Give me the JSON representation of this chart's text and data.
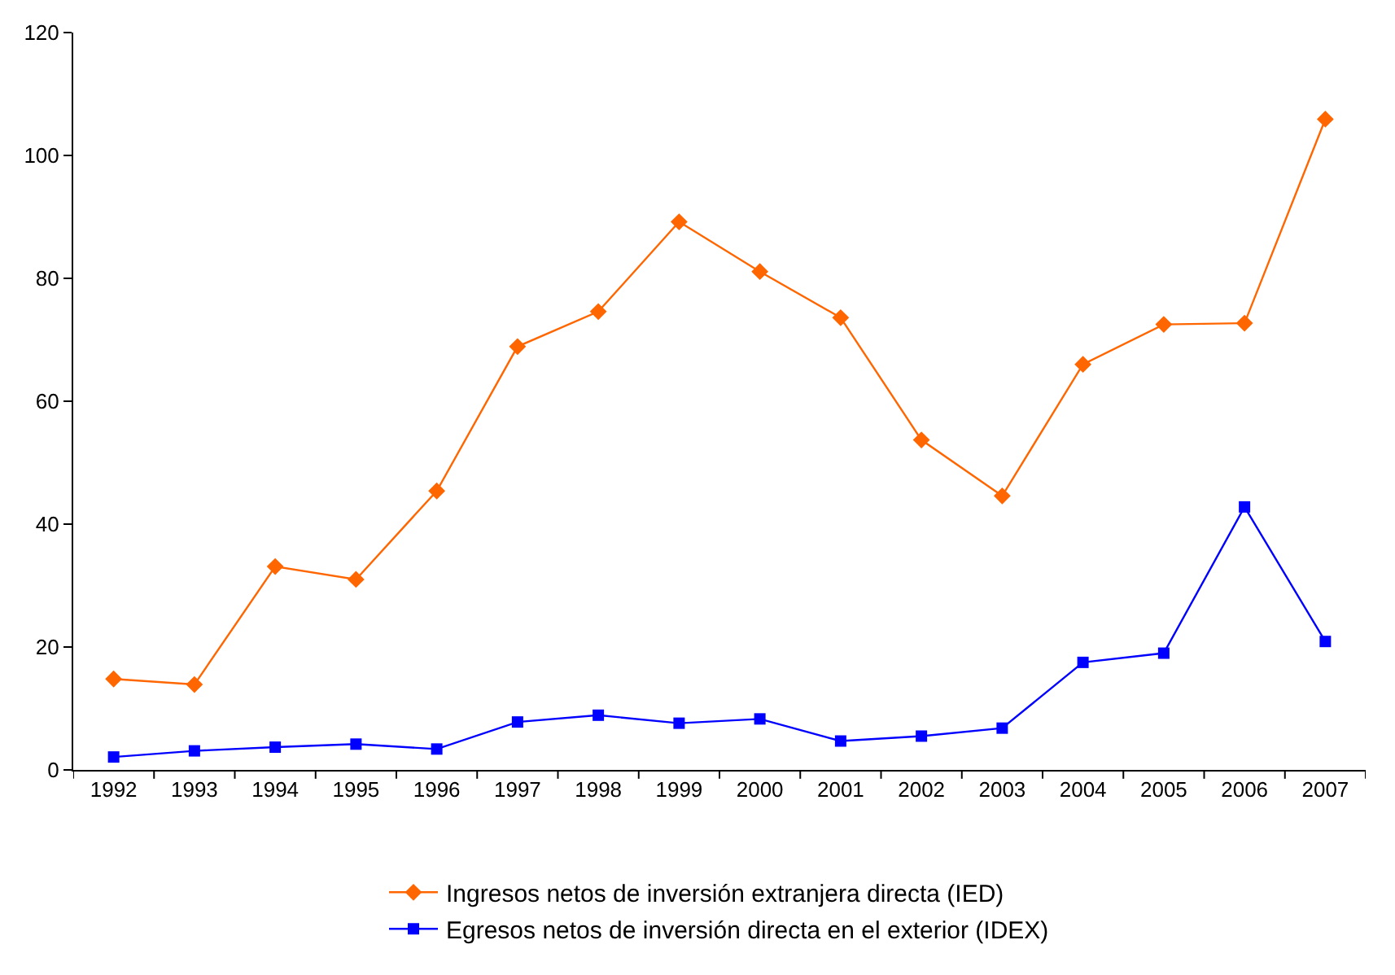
{
  "chart_data": {
    "type": "line",
    "categories": [
      "1992",
      "1993",
      "1994",
      "1995",
      "1996",
      "1997",
      "1998",
      "1999",
      "2000",
      "2001",
      "2002",
      "2003",
      "2004",
      "2005",
      "2006",
      "2007"
    ],
    "series": [
      {
        "name": "Ingresos netos de inversión extranjera directa (IED)",
        "color": "#ff6600",
        "marker": "diamond",
        "values": [
          14.8,
          13.9,
          33.1,
          31.0,
          45.4,
          68.9,
          74.6,
          89.2,
          81.1,
          73.6,
          53.7,
          44.6,
          66.0,
          72.5,
          72.7,
          105.9
        ]
      },
      {
        "name": "Egresos netos de inversión directa en el exterior (IDEX)",
        "color": "#0000ff",
        "marker": "square",
        "values": [
          2.1,
          3.1,
          3.7,
          4.2,
          3.4,
          7.8,
          8.9,
          7.6,
          8.3,
          4.7,
          5.5,
          6.8,
          17.5,
          19.0,
          42.8,
          20.9
        ]
      }
    ],
    "ylim": [
      0,
      120
    ],
    "yticks": [
      0,
      20,
      40,
      60,
      80,
      100,
      120
    ],
    "grid": false,
    "legend": "bottom"
  }
}
